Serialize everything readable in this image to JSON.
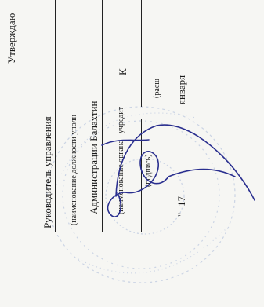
{
  "document": {
    "approve_label": "Утверждаю",
    "position": "Руководитель управления",
    "position_caption": "(наименование должности уполн",
    "organization": "Администрации Балахтин",
    "organization_caption": "(наименование органа - учредит",
    "organization_letter": "К",
    "signature_caption": "(подпись)",
    "decode_caption": "(расш",
    "date_quote": "\"",
    "date_day": "17",
    "date_month": "января"
  },
  "colors": {
    "ink": "#1a1a1a",
    "signature": "#2a2f8f",
    "stamp": "#8fa6cf"
  }
}
